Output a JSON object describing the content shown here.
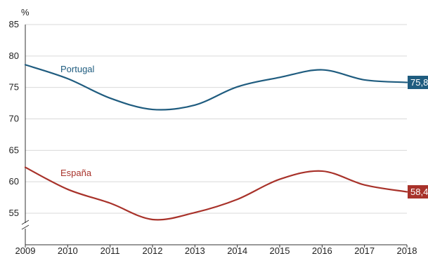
{
  "chart_data": {
    "type": "line",
    "y_unit": "%",
    "ylim": [
      55,
      85
    ],
    "y_ticks": [
      "85",
      "80",
      "75",
      "70",
      "65",
      "60",
      "55"
    ],
    "y_tick_values": [
      85,
      80,
      75,
      70,
      65,
      60,
      55
    ],
    "axis_break": true,
    "grid": "horizontal",
    "x_ticks": [
      "2009",
      "2010",
      "2011",
      "2012",
      "2013",
      "2014",
      "2015",
      "2016",
      "2017",
      "2018"
    ],
    "x": [
      2009,
      2010,
      2011,
      2012,
      2013,
      2014,
      2015,
      2016,
      2017,
      2018
    ],
    "series": [
      {
        "name": "Portugal",
        "color": "#1f5c7f",
        "values": [
          78.6,
          76.4,
          73.3,
          71.5,
          72.2,
          75.1,
          76.6,
          77.8,
          76.2,
          75.8
        ],
        "end_label": "75,8"
      },
      {
        "name": "España",
        "color": "#a8322a",
        "values": [
          62.3,
          58.8,
          56.6,
          54.0,
          55.1,
          57.2,
          60.4,
          61.7,
          59.5,
          58.4
        ],
        "end_label": "58,4"
      }
    ]
  }
}
